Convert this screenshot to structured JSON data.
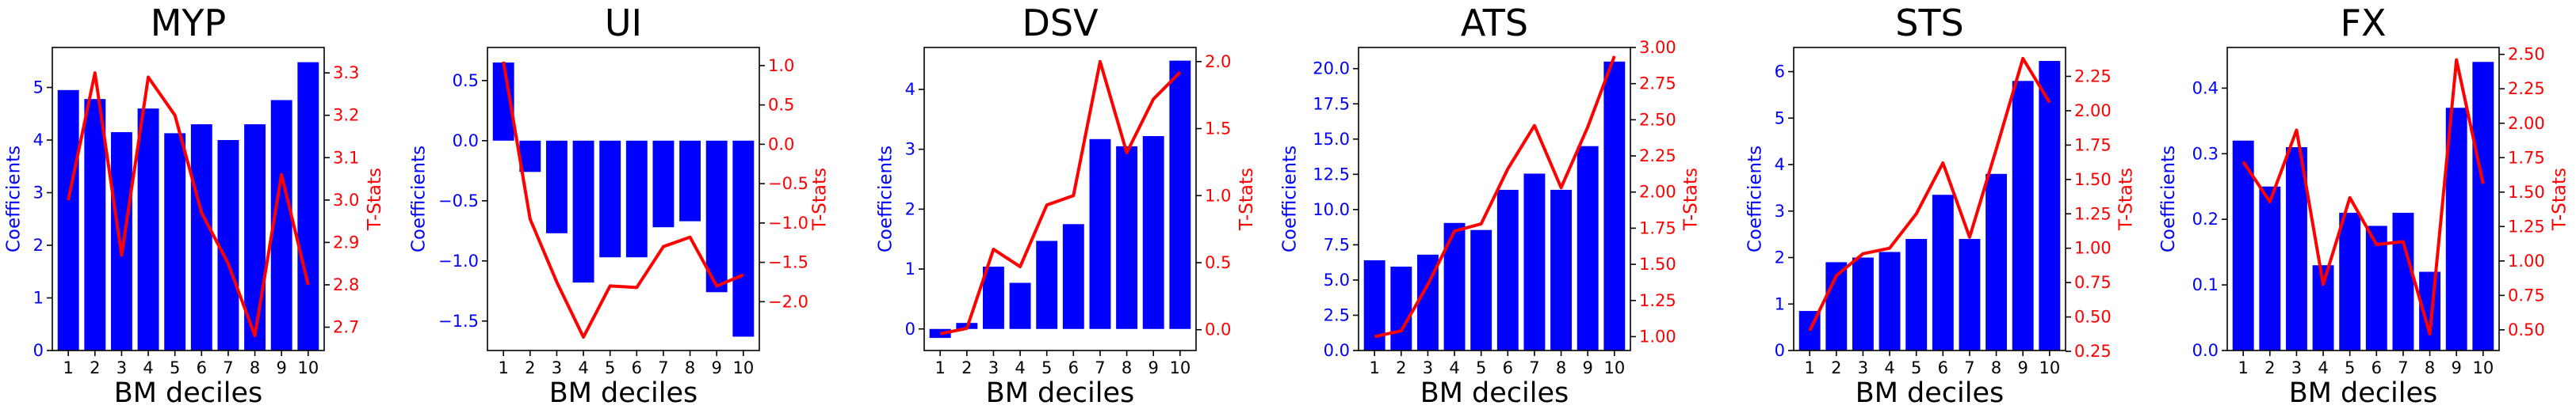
{
  "figure": {
    "xlabel": "BM deciles",
    "left_axis_label": "Coefficients",
    "right_axis_label": "T-Stats",
    "bar_color": "#0000ff",
    "line_color": "#ff0000"
  },
  "chart_data": [
    {
      "type": "bar",
      "title": "MYP",
      "xlabel": "BM deciles",
      "ylabel": "Coefficients",
      "ylabel_right": "T-Stats",
      "categories": [
        "1",
        "2",
        "3",
        "4",
        "5",
        "6",
        "7",
        "8",
        "9",
        "10"
      ],
      "series": [
        {
          "name": "Coefficients",
          "type": "bar",
          "axis": "left",
          "color": "#0000ff",
          "values": [
            4.95,
            4.78,
            4.15,
            4.6,
            4.13,
            4.3,
            4.0,
            4.3,
            4.76,
            5.48
          ]
        },
        {
          "name": "T-Stats",
          "type": "line",
          "axis": "right",
          "color": "#ff0000",
          "values": [
            3.0,
            3.3,
            2.87,
            3.29,
            3.2,
            2.97,
            2.85,
            2.68,
            3.06,
            2.8
          ]
        }
      ],
      "ylim": [
        0,
        5.76
      ],
      "y2lim": [
        2.645,
        3.36
      ],
      "yticks": [
        "0",
        "1",
        "2",
        "3",
        "4",
        "5"
      ],
      "y2ticks": [
        "2.7",
        "2.8",
        "2.9",
        "3.0",
        "3.1",
        "3.2",
        "3.3"
      ],
      "grid": false
    },
    {
      "type": "bar",
      "title": "UI",
      "xlabel": "BM deciles",
      "ylabel": "Coefficients",
      "ylabel_right": "T-Stats",
      "categories": [
        "1",
        "2",
        "3",
        "4",
        "5",
        "6",
        "7",
        "8",
        "9",
        "10"
      ],
      "series": [
        {
          "name": "Coefficients",
          "type": "bar",
          "axis": "left",
          "color": "#0000ff",
          "values": [
            0.65,
            -0.26,
            -0.77,
            -1.18,
            -0.97,
            -0.97,
            -0.72,
            -0.67,
            -1.26,
            -1.63
          ]
        },
        {
          "name": "T-Stats",
          "type": "line",
          "axis": "right",
          "color": "#ff0000",
          "values": [
            1.05,
            -0.95,
            -1.75,
            -2.45,
            -1.8,
            -1.82,
            -1.3,
            -1.18,
            -1.8,
            -1.66
          ]
        }
      ],
      "ylim": [
        -1.745,
        0.775
      ],
      "y2lim": [
        -2.62,
        1.23
      ],
      "yticks": [
        "−1.5",
        "−1.0",
        "−0.5",
        "0.0",
        "0.5"
      ],
      "y2ticks": [
        "−2.0",
        "−1.5",
        "−1.0",
        "−0.5",
        "0.0",
        "0.5",
        "1.0"
      ],
      "grid": false
    },
    {
      "type": "bar",
      "title": "DSV",
      "xlabel": "BM deciles",
      "ylabel": "Coefficients",
      "ylabel_right": "T-Stats",
      "categories": [
        "1",
        "2",
        "3",
        "4",
        "5",
        "6",
        "7",
        "8",
        "9",
        "10"
      ],
      "series": [
        {
          "name": "Coefficients",
          "type": "bar",
          "axis": "left",
          "color": "#0000ff",
          "values": [
            -0.15,
            0.1,
            1.04,
            0.77,
            1.47,
            1.75,
            3.17,
            3.05,
            3.22,
            4.48
          ]
        },
        {
          "name": "T-Stats",
          "type": "line",
          "axis": "right",
          "color": "#ff0000",
          "values": [
            -0.03,
            0.01,
            0.6,
            0.47,
            0.93,
            1.0,
            2.0,
            1.32,
            1.72,
            1.92
          ]
        }
      ],
      "ylim": [
        -0.36,
        4.7
      ],
      "y2lim": [
        -0.155,
        2.105
      ],
      "yticks": [
        "0",
        "1",
        "2",
        "3",
        "4"
      ],
      "y2ticks": [
        "0.0",
        "0.5",
        "1.0",
        "1.5",
        "2.0"
      ],
      "grid": false
    },
    {
      "type": "bar",
      "title": "ATS",
      "xlabel": "BM deciles",
      "ylabel": "Coefficients",
      "ylabel_right": "T-Stats",
      "categories": [
        "1",
        "2",
        "3",
        "4",
        "5",
        "6",
        "7",
        "8",
        "9",
        "10"
      ],
      "series": [
        {
          "name": "Coefficients",
          "type": "bar",
          "axis": "left",
          "color": "#0000ff",
          "values": [
            6.4,
            5.95,
            6.8,
            9.05,
            8.55,
            11.4,
            12.55,
            11.4,
            14.5,
            20.5
          ]
        },
        {
          "name": "T-Stats",
          "type": "line",
          "axis": "right",
          "color": "#ff0000",
          "values": [
            1.0,
            1.04,
            1.36,
            1.73,
            1.78,
            2.16,
            2.46,
            2.03,
            2.45,
            2.94
          ]
        }
      ],
      "ylim": [
        0,
        21.5
      ],
      "y2lim": [
        0.904,
        3.0
      ],
      "yticks": [
        "0.0",
        "2.5",
        "5.0",
        "7.5",
        "10.0",
        "12.5",
        "15.0",
        "17.5",
        "20.0"
      ],
      "y2ticks": [
        "1.00",
        "1.25",
        "1.50",
        "1.75",
        "2.00",
        "2.25",
        "2.50",
        "2.75",
        "3.00"
      ],
      "grid": false
    },
    {
      "type": "bar",
      "title": "STS",
      "xlabel": "BM deciles",
      "ylabel": "Coefficients",
      "ylabel_right": "T-Stats",
      "categories": [
        "1",
        "2",
        "3",
        "4",
        "5",
        "6",
        "7",
        "8",
        "9",
        "10"
      ],
      "series": [
        {
          "name": "Coefficients",
          "type": "bar",
          "axis": "left",
          "color": "#0000ff",
          "values": [
            0.85,
            1.9,
            2.0,
            2.12,
            2.4,
            3.35,
            2.4,
            3.8,
            5.8,
            6.23
          ]
        },
        {
          "name": "T-Stats",
          "type": "line",
          "axis": "right",
          "color": "#ff0000",
          "values": [
            0.4,
            0.8,
            0.96,
            1.0,
            1.25,
            1.62,
            1.08,
            1.72,
            2.38,
            2.06
          ]
        }
      ],
      "ylim": [
        0,
        6.52
      ],
      "y2lim": [
        0.256,
        2.46
      ],
      "yticks": [
        "0",
        "1",
        "2",
        "3",
        "4",
        "5",
        "6"
      ],
      "y2ticks": [
        "0.25",
        "0.50",
        "0.75",
        "1.00",
        "1.25",
        "1.50",
        "1.75",
        "2.00",
        "2.25"
      ],
      "grid": false
    },
    {
      "type": "bar",
      "title": "FX",
      "xlabel": "BM deciles",
      "ylabel": "Coefficients",
      "ylabel_right": "T-Stats",
      "categories": [
        "1",
        "2",
        "3",
        "4",
        "5",
        "6",
        "7",
        "8",
        "9",
        "10"
      ],
      "series": [
        {
          "name": "Coefficients",
          "type": "bar",
          "axis": "left",
          "color": "#0000ff",
          "values": [
            0.32,
            0.25,
            0.31,
            0.13,
            0.21,
            0.19,
            0.21,
            0.12,
            0.37,
            0.44
          ]
        },
        {
          "name": "T-Stats",
          "type": "line",
          "axis": "right",
          "color": "#ff0000",
          "values": [
            1.72,
            1.43,
            1.95,
            0.83,
            1.46,
            1.12,
            1.14,
            0.47,
            2.46,
            1.56
          ]
        }
      ],
      "ylim": [
        0,
        0.462
      ],
      "y2lim": [
        0.35,
        2.55
      ],
      "yticks": [
        "0.0",
        "0.1",
        "0.2",
        "0.3",
        "0.4"
      ],
      "y2ticks": [
        "0.50",
        "0.75",
        "1.00",
        "1.25",
        "1.50",
        "1.75",
        "2.00",
        "2.25",
        "2.50"
      ],
      "grid": false
    }
  ]
}
